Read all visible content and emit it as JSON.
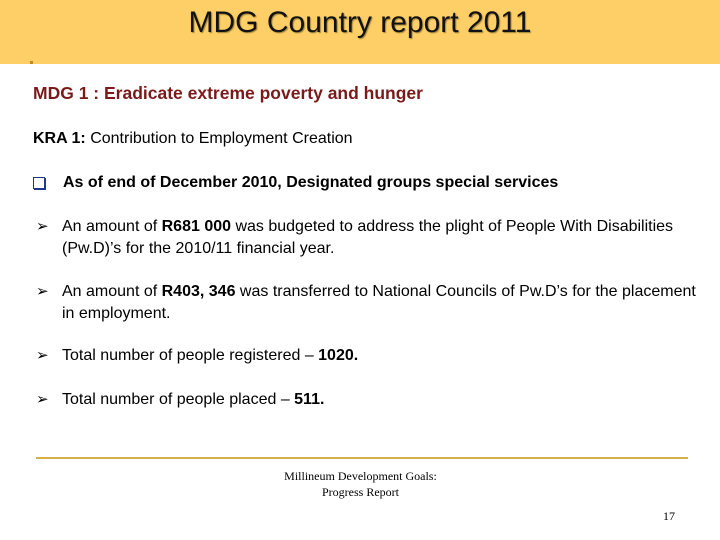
{
  "header": {
    "title": "MDG Country report 2011",
    "color": "#fdcf66"
  },
  "heading": "MDG 1 : Eradicate extreme poverty and hunger",
  "kra": {
    "label": "KRA 1:",
    "text": " Contribution to Employment Creation"
  },
  "q_bullet": "As of end of December 2010, Designated groups special services",
  "items": [
    {
      "pre": "An amount of ",
      "bold": "R681 000",
      "post": " was budgeted to address the plight of People With Disabilities (Pw.D)’s for the 2010/11 financial year."
    },
    {
      "pre": "An amount of ",
      "bold": "R403, 346",
      "post": " was transferred to National Councils of Pw.D’s for the placement in employment."
    },
    {
      "pre": "Total number of people registered – ",
      "bold": "1020.",
      "post": ""
    },
    {
      "pre": "Total number of people placed – ",
      "bold": "511.",
      "post": ""
    }
  ],
  "footer": {
    "line1": "Millineum Development Goals:",
    "line2": "Progress Report",
    "page_number": "17"
  }
}
